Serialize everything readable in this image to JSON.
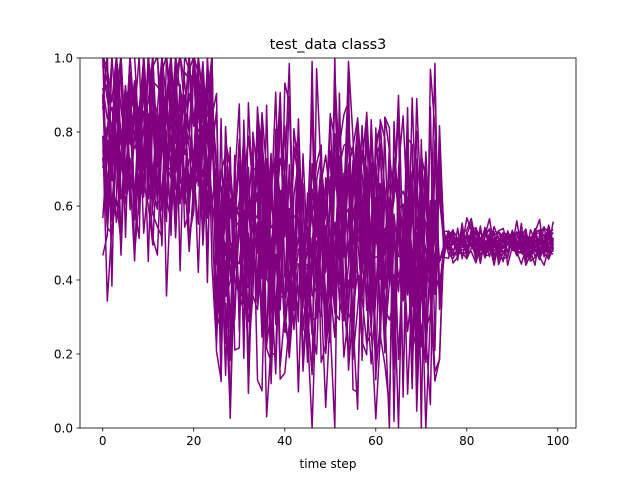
{
  "chart_data": {
    "type": "line",
    "title": "test_data class3",
    "xlabel": "time step",
    "ylabel": "",
    "xlim": [
      -5,
      104
    ],
    "ylim": [
      0.0,
      1.0
    ],
    "xticks": [
      0,
      20,
      40,
      60,
      80,
      100
    ],
    "xtick_labels": [
      "0",
      "20",
      "40",
      "60",
      "80",
      "100"
    ],
    "yticks": [
      0.0,
      0.2,
      0.4,
      0.6,
      0.8,
      1.0
    ],
    "ytick_labels": [
      "0.0",
      "0.2",
      "0.4",
      "0.6",
      "0.8",
      "1.0"
    ],
    "series_color": "#800080",
    "n_series": 20,
    "n_points": 100,
    "x_range": [
      0,
      99
    ],
    "segments": [
      {
        "x_start": 0,
        "x_end": 24,
        "mean": 0.8,
        "spread": 0.16,
        "min": 0.33,
        "max": 1.0
      },
      {
        "x_start": 25,
        "x_end": 74,
        "mean": 0.5,
        "spread": 0.2,
        "min": 0.0,
        "max": 1.0
      },
      {
        "x_start": 75,
        "x_end": 99,
        "mean": 0.5,
        "spread": 0.025,
        "min": 0.44,
        "max": 0.57
      }
    ],
    "grid": false,
    "legend": "none"
  }
}
